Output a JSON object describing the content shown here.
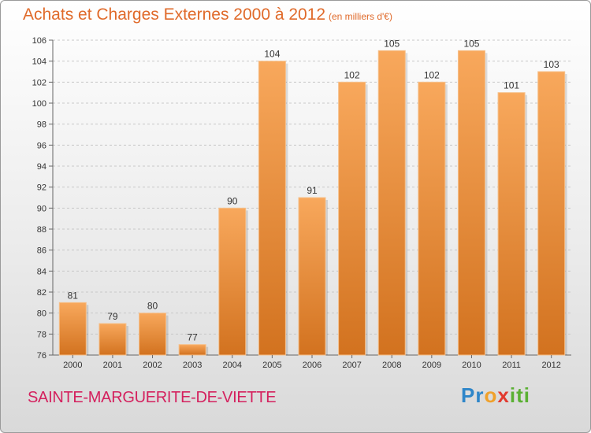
{
  "title": "Achats et Charges Externes 2000 à 2012",
  "subtitle": "(en milliers d'€)",
  "region_label": "SAINTE-MARGUERITE-DE-VIETTE",
  "logo": {
    "text": "Proxiti",
    "letters": [
      {
        "ch": "P",
        "color": "#2e86c9"
      },
      {
        "ch": "r",
        "color": "#2e86c9"
      },
      {
        "ch": "o",
        "color": "#f0a12b"
      },
      {
        "ch": "x",
        "color": "#e23a2f"
      },
      {
        "ch": "i",
        "color": "#5ab033"
      },
      {
        "ch": "t",
        "color": "#5ab033"
      },
      {
        "ch": "i",
        "color": "#5ab033"
      }
    ]
  },
  "colors": {
    "bar_top": "#f8a85c",
    "bar_bottom": "#d2721f",
    "bar_edge": "#f6c08a",
    "title": "#e06a2a",
    "region": "#d4215e",
    "grid": "#c8c8c8",
    "axis_text": "#333333"
  },
  "chart_data": {
    "type": "bar",
    "title": "Achats et Charges Externes 2000 à 2012",
    "xlabel": "",
    "ylabel": "",
    "categories": [
      "2000",
      "2001",
      "2002",
      "2003",
      "2004",
      "2005",
      "2006",
      "2007",
      "2008",
      "2009",
      "2010",
      "2011",
      "2012"
    ],
    "values": [
      81,
      79,
      80,
      77,
      90,
      104,
      91,
      102,
      105,
      102,
      105,
      101,
      103
    ],
    "ylim": [
      76,
      106
    ],
    "yticks": [
      76,
      78,
      80,
      82,
      84,
      86,
      88,
      90,
      92,
      94,
      96,
      98,
      100,
      102,
      104,
      106
    ],
    "grid": "horizontal dashed",
    "data_labels": true,
    "legend": "none"
  }
}
